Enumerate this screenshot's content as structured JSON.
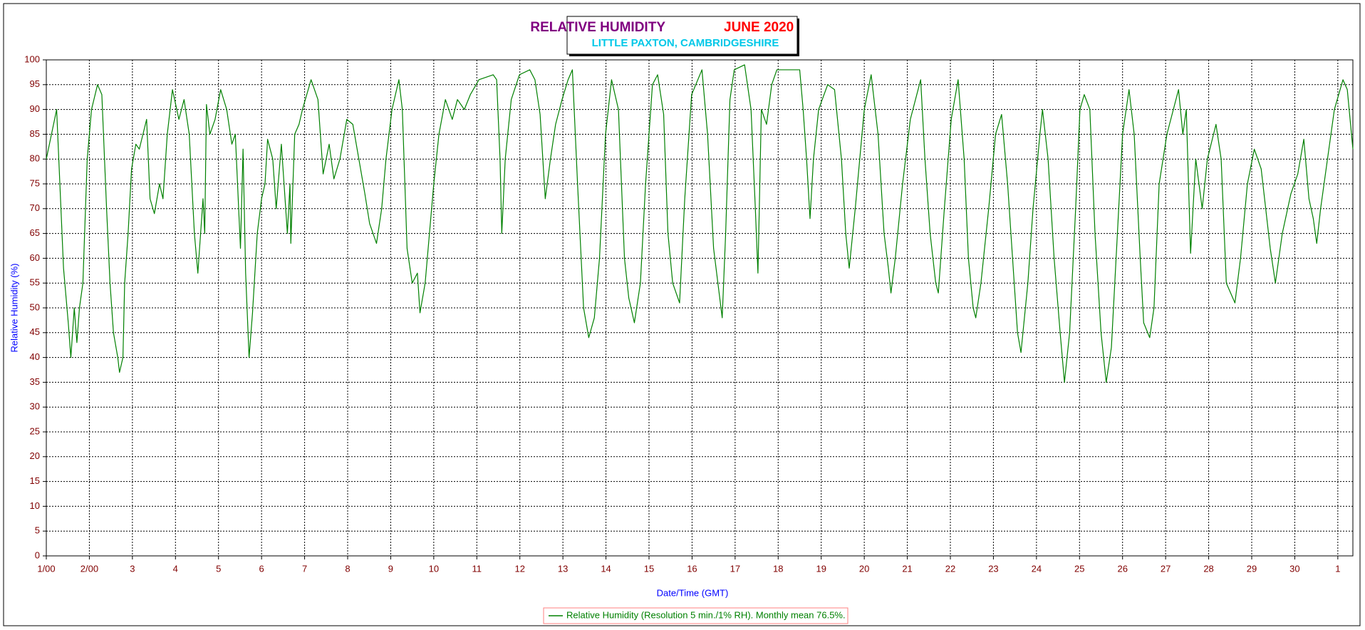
{
  "chart_data": {
    "type": "line",
    "title": "RELATIVE HUMIDITY",
    "title_period": "JUNE 2020",
    "subtitle": "LITTLE PAXTON, CAMBRIDGESHIRE",
    "x_label": "Date/Time (GMT)",
    "y_label": "Relative Humidity (%)",
    "grid": true,
    "xlim": [
      1,
      31.35
    ],
    "ylim": [
      0,
      100
    ],
    "xticks": [
      {
        "value": 1,
        "label": "1/00"
      },
      {
        "value": 2,
        "label": "2/00"
      },
      3,
      4,
      5,
      6,
      7,
      8,
      9,
      10,
      11,
      12,
      13,
      14,
      15,
      16,
      17,
      18,
      19,
      20,
      21,
      22,
      23,
      24,
      25,
      26,
      27,
      28,
      29,
      30,
      {
        "value": 31,
        "label": "1"
      }
    ],
    "yticks": [
      0,
      5,
      10,
      15,
      20,
      25,
      30,
      35,
      40,
      45,
      50,
      55,
      60,
      65,
      70,
      75,
      80,
      85,
      90,
      95,
      100
    ],
    "x": [
      1.0,
      1.24,
      1.4,
      1.51,
      1.57,
      1.65,
      1.71,
      1.77,
      1.85,
      1.95,
      2.05,
      2.19,
      2.29,
      2.4,
      2.48,
      2.56,
      2.66,
      2.7,
      2.78,
      2.82,
      2.9,
      2.98,
      3.08,
      3.16,
      3.33,
      3.41,
      3.51,
      3.63,
      3.71,
      3.81,
      3.93,
      4.08,
      4.2,
      4.32,
      4.44,
      4.52,
      4.64,
      4.68,
      4.72,
      4.8,
      4.92,
      5.05,
      5.19,
      5.31,
      5.39,
      5.51,
      5.57,
      5.63,
      5.71,
      5.79,
      5.9,
      6.0,
      6.08,
      6.14,
      6.26,
      6.34,
      6.46,
      6.6,
      6.66,
      6.68,
      6.77,
      6.87,
      6.95,
      7.15,
      7.31,
      7.43,
      7.57,
      7.68,
      7.82,
      7.98,
      8.12,
      8.26,
      8.4,
      8.51,
      8.67,
      8.79,
      8.89,
      9.03,
      9.19,
      9.27,
      9.38,
      9.5,
      9.62,
      9.68,
      9.8,
      9.9,
      10.0,
      10.12,
      10.27,
      10.43,
      10.55,
      10.71,
      10.85,
      11.05,
      11.38,
      11.46,
      11.54,
      11.58,
      11.66,
      11.8,
      11.99,
      12.23,
      12.35,
      12.47,
      12.59,
      12.71,
      12.83,
      12.98,
      13.12,
      13.22,
      13.34,
      13.48,
      13.6,
      13.73,
      13.85,
      13.99,
      14.13,
      14.29,
      14.43,
      14.53,
      14.66,
      14.8,
      14.92,
      15.08,
      15.2,
      15.34,
      15.44,
      15.55,
      15.71,
      15.83,
      15.99,
      16.23,
      16.36,
      16.5,
      16.6,
      16.7,
      16.78,
      16.88,
      16.98,
      17.22,
      17.37,
      17.47,
      17.53,
      17.61,
      17.73,
      17.85,
      17.97,
      18.5,
      18.58,
      18.66,
      18.74,
      18.82,
      18.94,
      19.15,
      19.31,
      19.47,
      19.57,
      19.65,
      19.79,
      20.0,
      20.16,
      20.32,
      20.46,
      20.56,
      20.62,
      20.72,
      20.89,
      21.07,
      21.31,
      21.41,
      21.53,
      21.66,
      21.72,
      21.86,
      22.02,
      22.18,
      22.32,
      22.42,
      22.53,
      22.59,
      22.71,
      22.89,
      23.05,
      23.19,
      23.33,
      23.46,
      23.56,
      23.64,
      23.8,
      23.92,
      24.08,
      24.14,
      24.27,
      24.41,
      24.55,
      24.65,
      24.77,
      24.91,
      25.01,
      25.11,
      25.24,
      25.36,
      25.5,
      25.62,
      25.74,
      25.88,
      26.0,
      26.15,
      26.27,
      26.41,
      26.49,
      26.63,
      26.73,
      26.85,
      27.03,
      27.3,
      27.4,
      27.48,
      27.58,
      27.7,
      27.85,
      27.97,
      28.17,
      28.29,
      28.41,
      28.61,
      28.74,
      28.9,
      29.06,
      29.22,
      29.43,
      29.55,
      29.71,
      29.91,
      30.07,
      30.21,
      30.33,
      30.43,
      30.51,
      30.6,
      30.76,
      30.92,
      31.12,
      31.22,
      31.35
    ],
    "series": [
      {
        "name": "Relative Humidity (Resolution 5 min./1% RH). Monthly mean 76.5%.",
        "color": "#008000",
        "values": [
          80,
          90,
          58,
          47,
          40,
          50,
          43,
          50,
          55,
          80,
          90,
          95,
          93,
          70,
          55,
          45,
          40,
          37,
          40,
          55,
          65,
          78,
          83,
          82,
          88,
          72,
          69,
          75,
          72,
          85,
          94,
          88,
          92,
          85,
          65,
          57,
          72,
          65,
          91,
          85,
          88,
          94,
          90,
          83,
          85,
          62,
          82,
          57,
          40,
          49,
          65,
          72,
          75,
          84,
          80,
          70,
          83,
          65,
          75,
          63,
          85,
          87,
          90,
          96,
          92,
          77,
          83,
          76,
          80,
          88,
          87,
          80,
          73,
          67,
          63,
          70,
          80,
          90,
          96,
          90,
          62,
          55,
          57,
          49,
          55,
          65,
          75,
          85,
          92,
          88,
          92,
          90,
          93,
          96,
          97,
          96,
          80,
          65,
          80,
          92,
          97,
          98,
          96,
          89,
          72,
          80,
          87,
          92,
          96,
          98,
          75,
          50,
          44,
          48,
          60,
          85,
          96,
          90,
          60,
          52,
          47,
          55,
          75,
          95,
          97,
          89,
          65,
          55,
          51,
          72,
          93,
          98,
          85,
          62,
          55,
          48,
          65,
          92,
          98,
          99,
          90,
          70,
          57,
          90,
          87,
          95,
          98,
          98,
          90,
          80,
          68,
          80,
          90,
          95,
          94,
          80,
          65,
          58,
          70,
          90,
          97,
          85,
          65,
          58,
          53,
          60,
          75,
          88,
          96,
          80,
          65,
          55,
          53,
          70,
          88,
          96,
          80,
          60,
          50,
          48,
          55,
          70,
          85,
          89,
          75,
          58,
          45,
          41,
          55,
          70,
          85,
          90,
          80,
          60,
          45,
          35,
          45,
          70,
          90,
          93,
          90,
          65,
          45,
          35,
          42,
          65,
          85,
          94,
          85,
          60,
          47,
          44,
          50,
          75,
          85,
          94,
          85,
          90,
          61,
          80,
          70,
          80,
          87,
          80,
          55,
          51,
          60,
          75,
          82,
          78,
          62,
          55,
          65,
          73,
          77,
          84,
          72,
          68,
          63,
          70,
          80,
          90,
          96,
          94,
          82
        ]
      }
    ]
  }
}
